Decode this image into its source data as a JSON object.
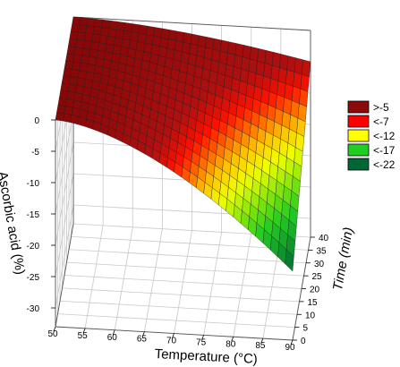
{
  "chart_data": {
    "type": "surface",
    "x_axis": {
      "label": "Temperature (°C)",
      "ticks": [
        50,
        55,
        60,
        65,
        70,
        75,
        80,
        85,
        90
      ],
      "range": [
        50,
        90
      ]
    },
    "y_axis": {
      "label": "Time (min)",
      "ticks": [
        0,
        5,
        10,
        15,
        20,
        25,
        30,
        35,
        40
      ],
      "range": [
        0,
        40
      ]
    },
    "z_axis": {
      "label": "Ascorbic acid (%)",
      "ticks": [
        0,
        -5,
        -10,
        -15,
        -20,
        -25,
        -30
      ],
      "range": [
        -33,
        0
      ]
    },
    "surface_corners": {
      "temp_50_time_0": 0,
      "temp_50_time_40": 0,
      "temp_90_time_0": -22,
      "temp_90_time_40": -5
    },
    "legend": {
      "placement": "right",
      "entries": [
        {
          "label": ">-5",
          "color": "#8b0a0a"
        },
        {
          "label": "<-7",
          "color": "#ff0000"
        },
        {
          "label": "<-12",
          "color": "#ffff00"
        },
        {
          "label": "<-17",
          "color": "#22cc22"
        },
        {
          "label": "<-22",
          "color": "#006633"
        }
      ]
    },
    "grid": true
  }
}
